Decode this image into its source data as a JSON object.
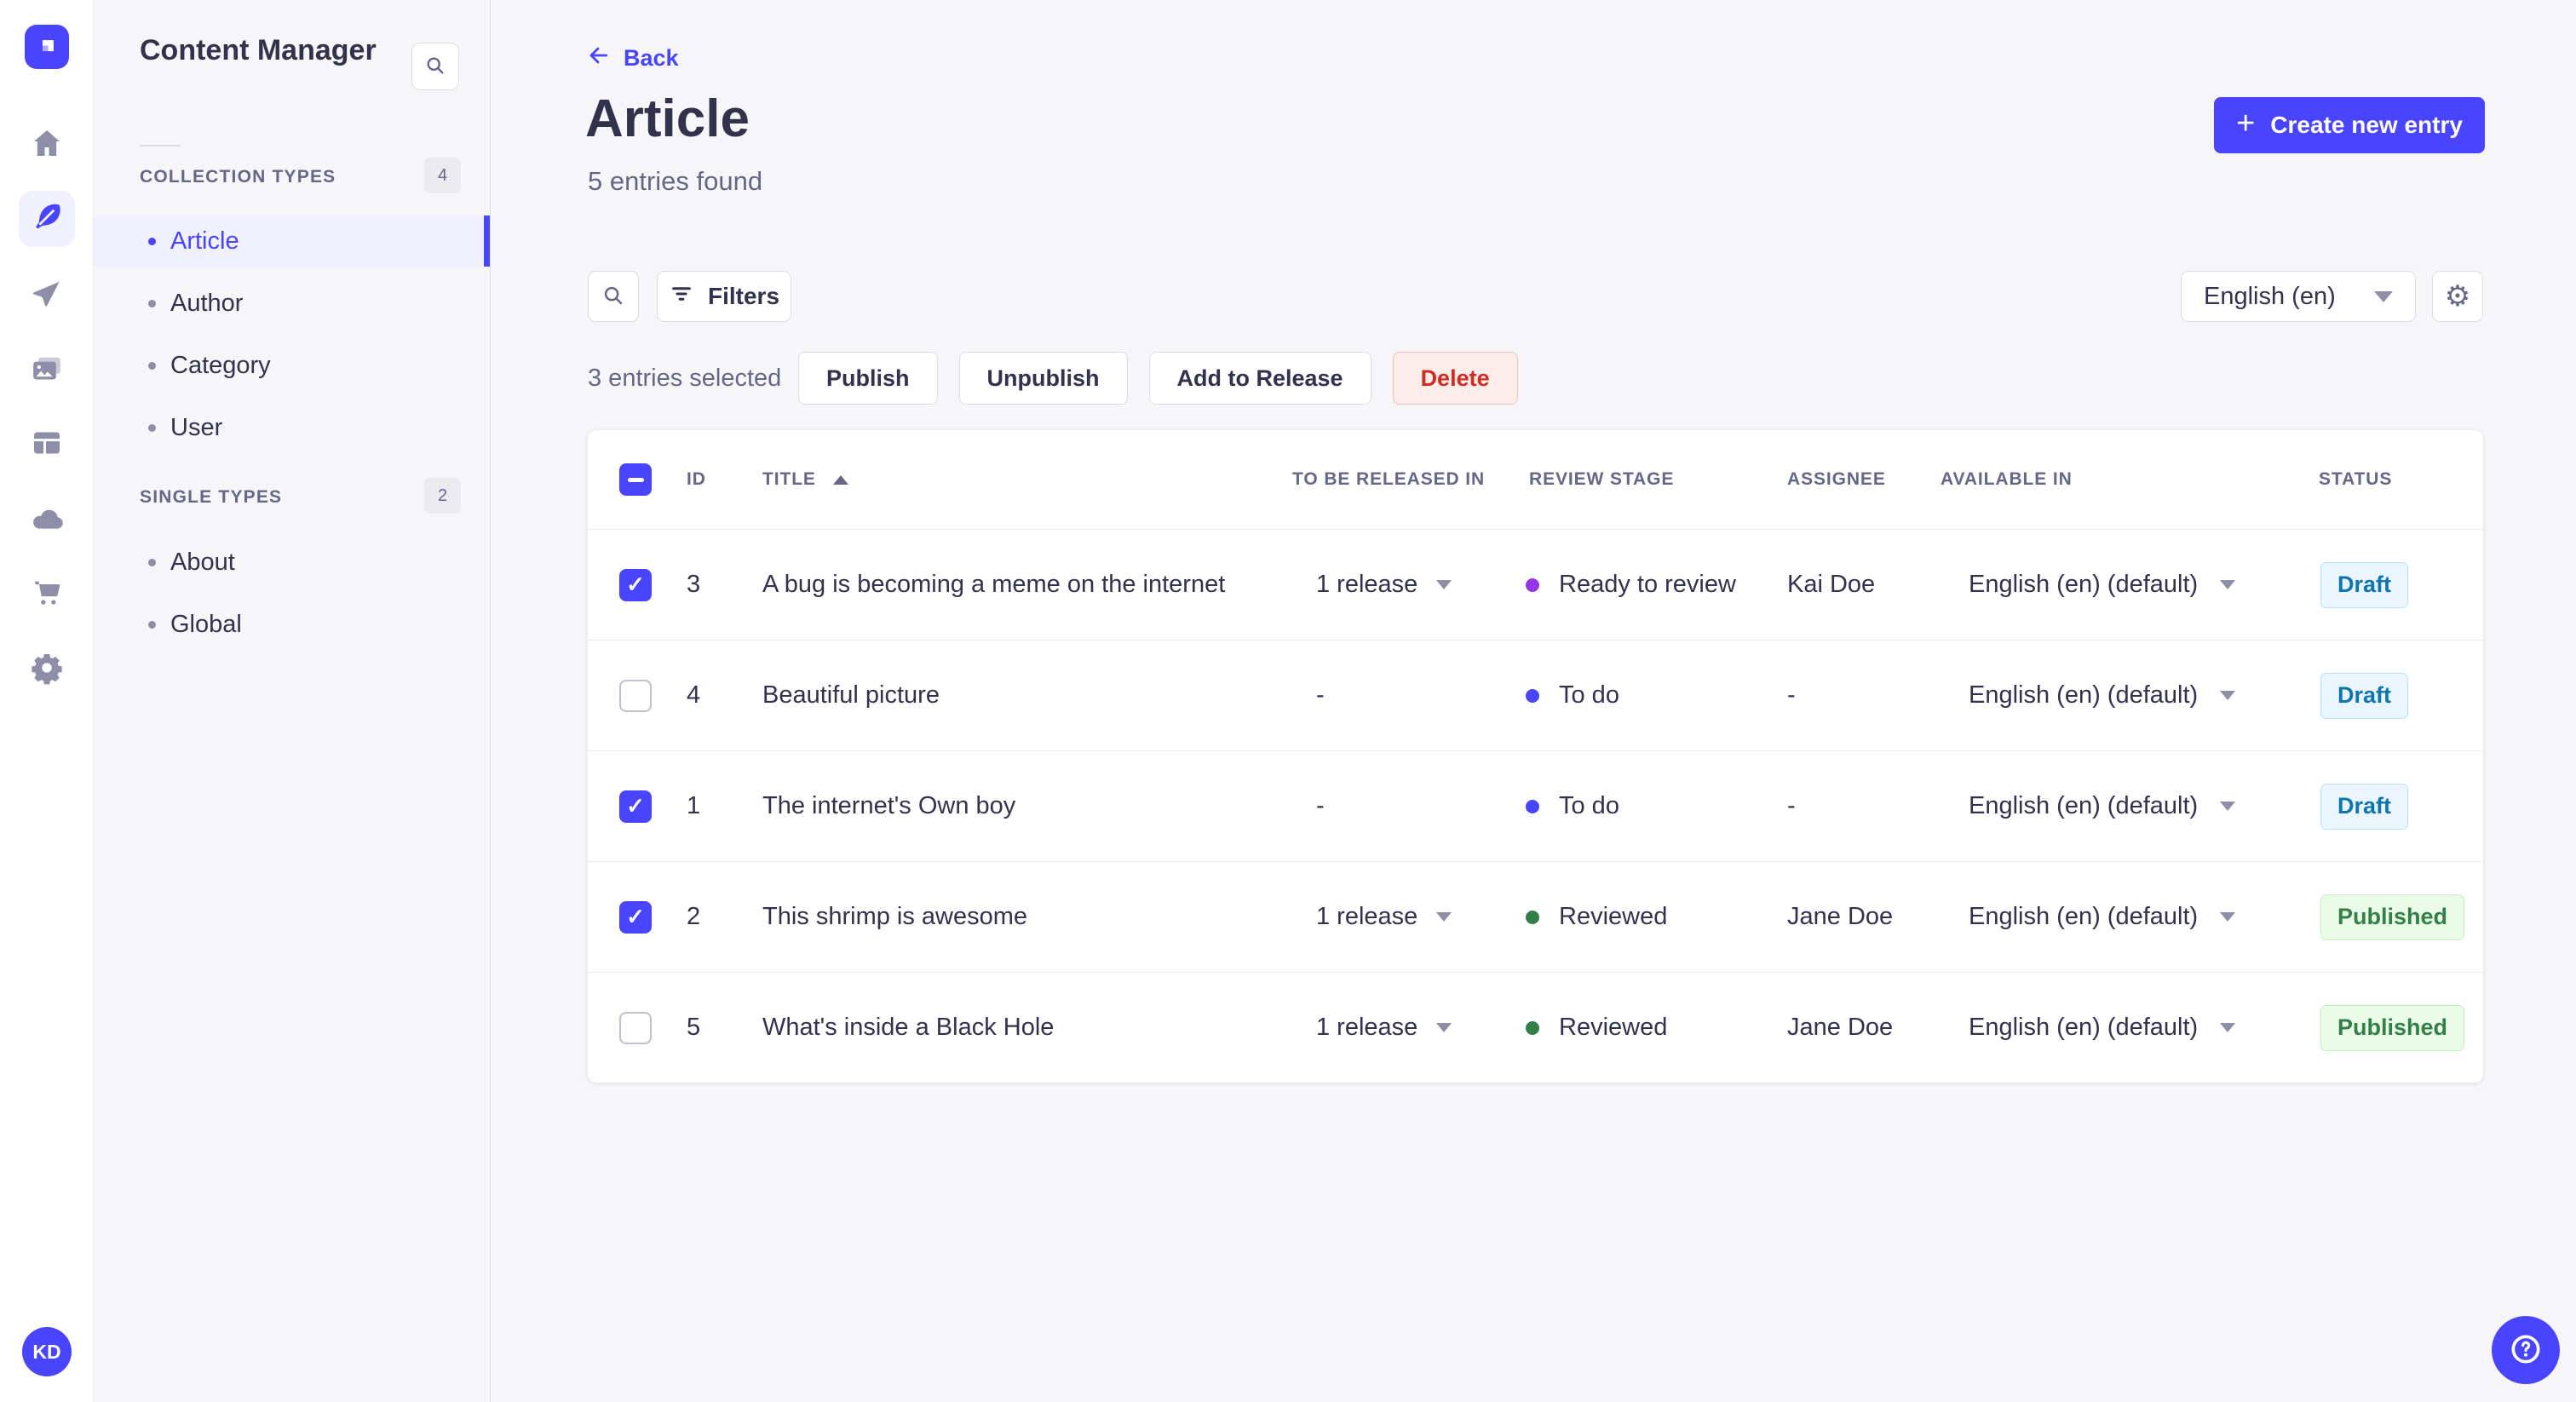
{
  "colors": {
    "primary": "#4945ff",
    "stage_todo": "#4945ff",
    "stage_ready": "#9736e8",
    "stage_reviewed": "#328048",
    "danger": "#d02b20"
  },
  "icons": {
    "plus": "+",
    "settings": "⚙",
    "help": "?"
  },
  "nav_rail": {
    "items": [
      {
        "name": "home",
        "icon": "home-icon",
        "active": false
      },
      {
        "name": "content-manager",
        "icon": "feather-icon",
        "active": true
      },
      {
        "name": "releases",
        "icon": "paper-plane-icon",
        "active": false
      },
      {
        "name": "media-library",
        "icon": "media-library-icon",
        "active": false
      },
      {
        "name": "content-type-builder",
        "icon": "layout-icon",
        "active": false
      },
      {
        "name": "deploy",
        "icon": "cloud-icon",
        "active": false
      },
      {
        "name": "marketplace",
        "icon": "cart-icon",
        "active": false
      },
      {
        "name": "settings",
        "icon": "gear-icon",
        "active": false
      }
    ],
    "avatar_initials": "KD"
  },
  "subnav": {
    "title": "Content Manager",
    "sections": [
      {
        "label": "COLLECTION TYPES",
        "badge": "4",
        "items": [
          {
            "label": "Article",
            "active": true
          },
          {
            "label": "Author",
            "active": false
          },
          {
            "label": "Category",
            "active": false
          },
          {
            "label": "User",
            "active": false
          }
        ]
      },
      {
        "label": "SINGLE TYPES",
        "badge": "2",
        "items": [
          {
            "label": "About",
            "active": false
          },
          {
            "label": "Global",
            "active": false
          }
        ]
      }
    ]
  },
  "header": {
    "back": "Back",
    "title": "Article",
    "subtitle": "5 entries found",
    "create": "Create new entry"
  },
  "toolbar": {
    "filters": "Filters",
    "locale": "English (en)"
  },
  "selection": {
    "label": "3 entries selected",
    "actions": [
      {
        "label": "Publish",
        "variant": "default"
      },
      {
        "label": "Unpublish",
        "variant": "default"
      },
      {
        "label": "Add to Release",
        "variant": "default"
      },
      {
        "label": "Delete",
        "variant": "danger"
      }
    ]
  },
  "table": {
    "headers": {
      "id": "ID",
      "title": "TITLE",
      "release": "TO BE RELEASED IN",
      "stage": "REVIEW STAGE",
      "assignee": "ASSIGNEE",
      "locale": "AVAILABLE IN",
      "status": "STATUS"
    },
    "rows": [
      {
        "checked": true,
        "id": "3",
        "title": "A bug is becoming a meme on the internet",
        "release": "1 release",
        "release_caret": true,
        "stage": "Ready to review",
        "stage_color": "#9736e8",
        "assignee": "Kai Doe",
        "locale": "English (en) (default)",
        "status": "Draft",
        "status_variant": "draft"
      },
      {
        "checked": false,
        "id": "4",
        "title": "Beautiful picture",
        "release": "-",
        "release_caret": false,
        "stage": "To do",
        "stage_color": "#4945ff",
        "assignee": "-",
        "locale": "English (en) (default)",
        "status": "Draft",
        "status_variant": "draft"
      },
      {
        "checked": true,
        "id": "1",
        "title": "The internet's Own boy",
        "release": "-",
        "release_caret": false,
        "stage": "To do",
        "stage_color": "#4945ff",
        "assignee": "-",
        "locale": "English (en) (default)",
        "status": "Draft",
        "status_variant": "draft"
      },
      {
        "checked": true,
        "id": "2",
        "title": "This shrimp is awesome",
        "release": "1 release",
        "release_caret": true,
        "stage": "Reviewed",
        "stage_color": "#328048",
        "assignee": "Jane Doe",
        "locale": "English (en) (default)",
        "status": "Published",
        "status_variant": "published"
      },
      {
        "checked": false,
        "id": "5",
        "title": "What's inside a Black Hole",
        "release": "1 release",
        "release_caret": true,
        "stage": "Reviewed",
        "stage_color": "#328048",
        "assignee": "Jane Doe",
        "locale": "English (en) (default)",
        "status": "Published",
        "status_variant": "published"
      }
    ]
  }
}
